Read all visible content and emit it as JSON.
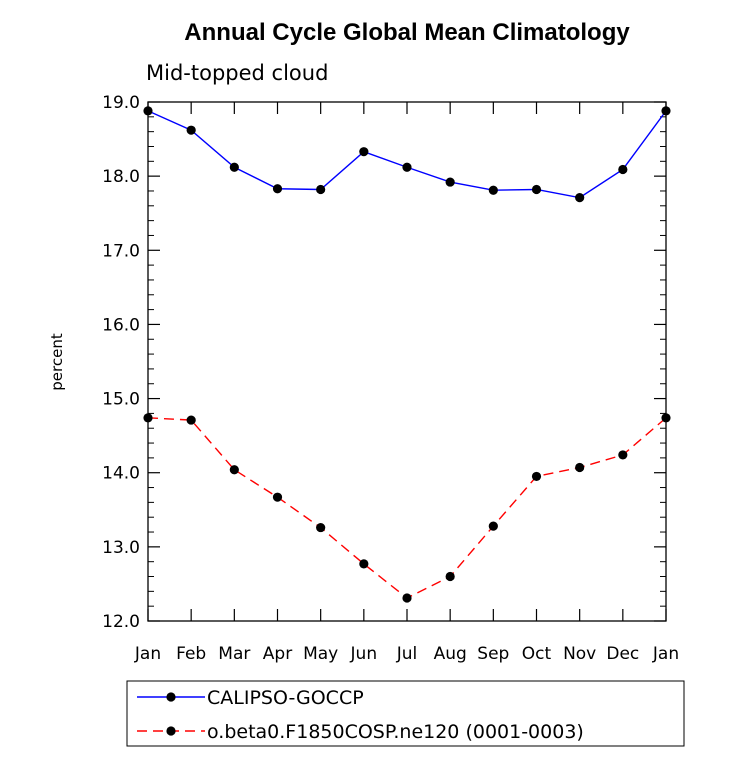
{
  "chart_data": {
    "type": "line",
    "title": "Annual Cycle Global Mean Climatology",
    "subtitle": "Mid-topped cloud",
    "xlabel": "",
    "ylabel": "percent",
    "categories": [
      "Jan",
      "Feb",
      "Mar",
      "Apr",
      "May",
      "Jun",
      "Jul",
      "Aug",
      "Sep",
      "Oct",
      "Nov",
      "Dec",
      "Jan"
    ],
    "ylim": [
      12.0,
      19.0
    ],
    "yticks": [
      "12.0",
      "13.0",
      "14.0",
      "15.0",
      "16.0",
      "17.0",
      "18.0",
      "19.0"
    ],
    "legend_position": "bottom",
    "series": [
      {
        "name": "CALIPSO-GOCCP",
        "color": "#0000ff",
        "dash": "solid",
        "values": [
          18.88,
          18.62,
          18.12,
          17.83,
          17.82,
          18.33,
          18.12,
          17.92,
          17.81,
          17.82,
          17.71,
          18.09,
          18.88
        ]
      },
      {
        "name": "o.beta0.F1850COSP.ne120 (0001-0003)",
        "color": "#ff0000",
        "dash": "dashed",
        "values": [
          14.74,
          14.71,
          14.04,
          13.67,
          13.26,
          12.77,
          12.31,
          12.6,
          13.28,
          13.95,
          14.07,
          14.24,
          14.74
        ]
      }
    ]
  }
}
